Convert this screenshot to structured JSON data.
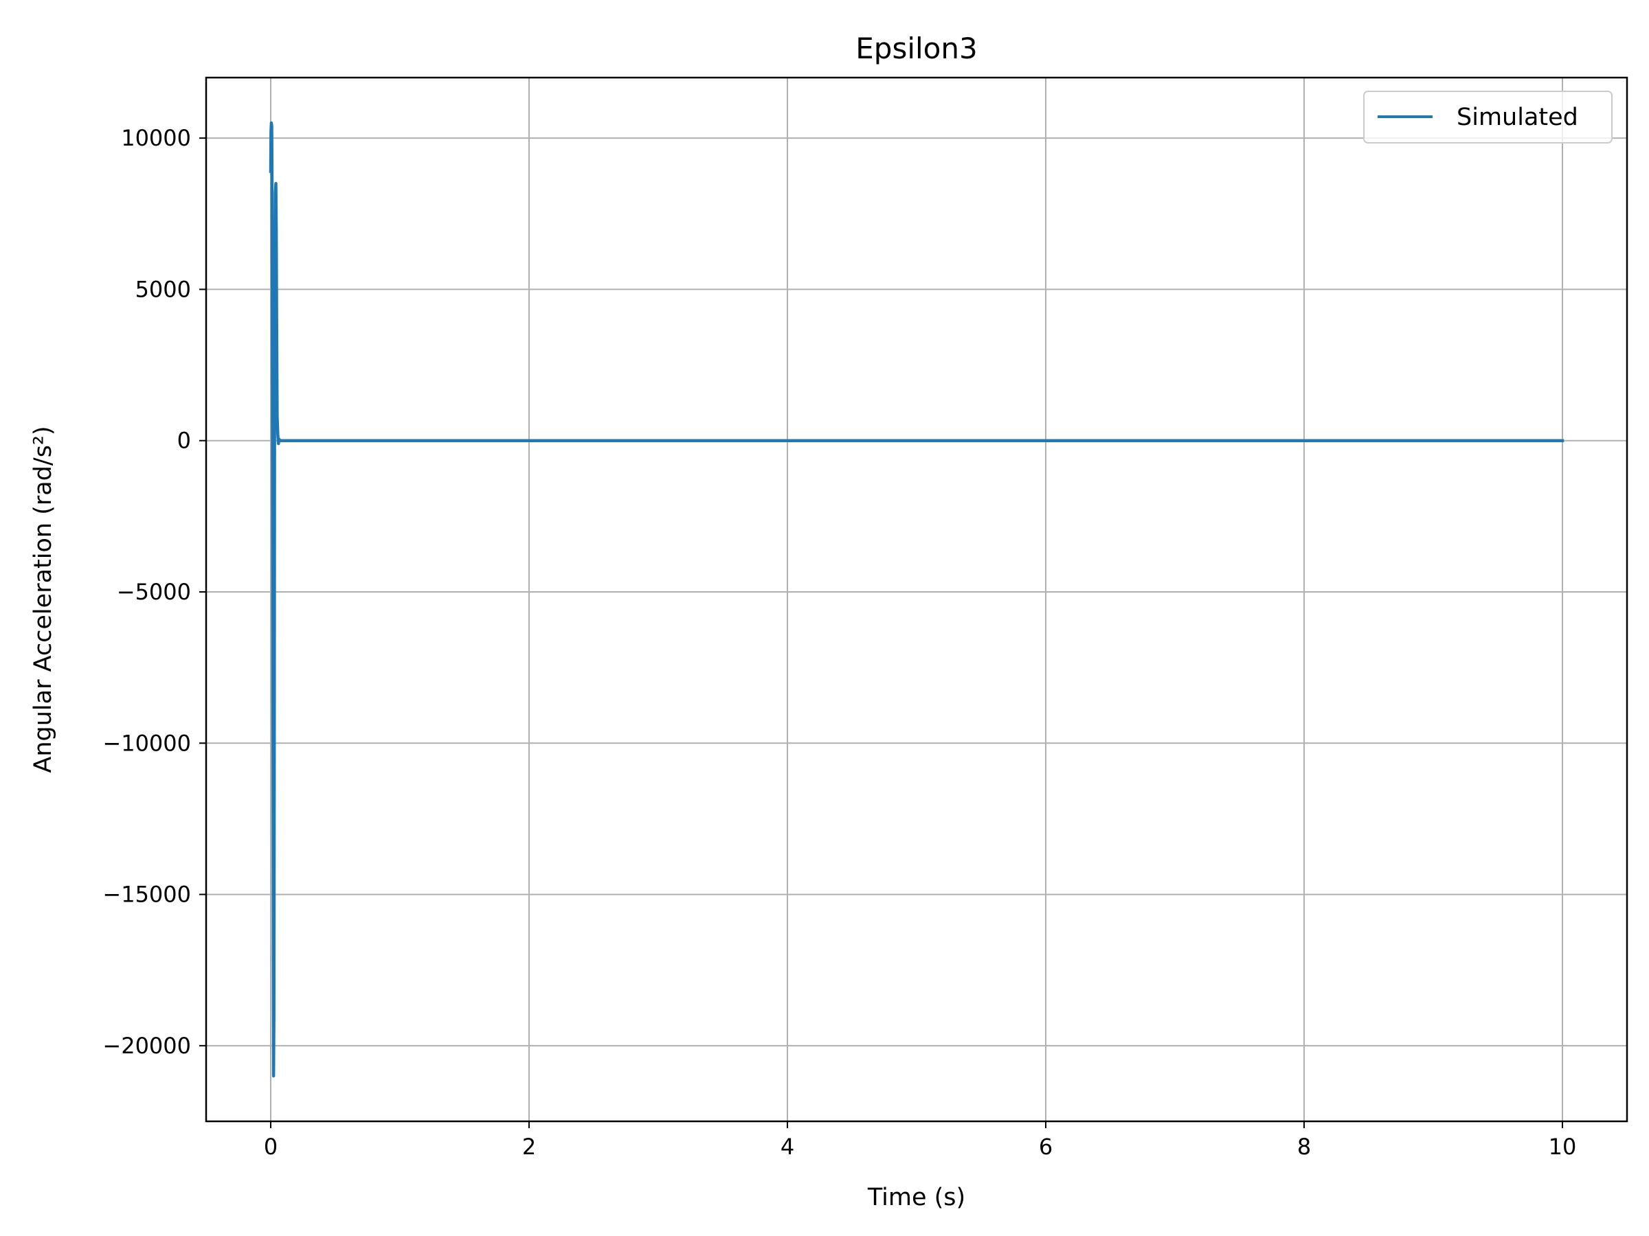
{
  "chart_data": {
    "type": "line",
    "title": "Epsilon3",
    "xlabel": "Time (s)",
    "ylabel": "Angular Acceleration (rad/s²)",
    "xlim": [
      -0.5,
      10.5
    ],
    "ylim": [
      -22500,
      12000
    ],
    "x_ticks": [
      0,
      2,
      4,
      6,
      8,
      10
    ],
    "x_tick_labels": [
      "0",
      "2",
      "4",
      "6",
      "8",
      "10"
    ],
    "y_ticks": [
      10000,
      5000,
      0,
      -5000,
      -10000,
      -15000,
      -20000
    ],
    "y_tick_labels": [
      "10000",
      "5000",
      "0",
      "−5000",
      "−10000",
      "−15000",
      "−20000"
    ],
    "grid": true,
    "legend_position": "top-right",
    "series": [
      {
        "name": "Simulated",
        "color": "#1f77b4",
        "x": [
          0.0,
          0.002,
          0.005,
          0.008,
          0.01,
          0.012,
          0.015,
          0.018,
          0.02,
          0.022,
          0.025,
          0.028,
          0.03,
          0.033,
          0.036,
          0.04,
          0.043,
          0.046,
          0.05,
          0.055,
          0.06,
          0.065,
          0.07,
          0.08,
          0.1,
          0.5,
          1,
          2,
          4,
          6,
          8,
          10
        ],
        "values": [
          8900,
          10200,
          10500,
          10400,
          9000,
          4000,
          -3000,
          -11000,
          -17000,
          -21000,
          -19000,
          -9000,
          1000,
          6000,
          8200,
          8500,
          7000,
          4000,
          800,
          200,
          -100,
          50,
          0,
          0,
          0,
          0,
          0,
          0,
          0,
          0,
          0,
          0
        ]
      }
    ]
  }
}
